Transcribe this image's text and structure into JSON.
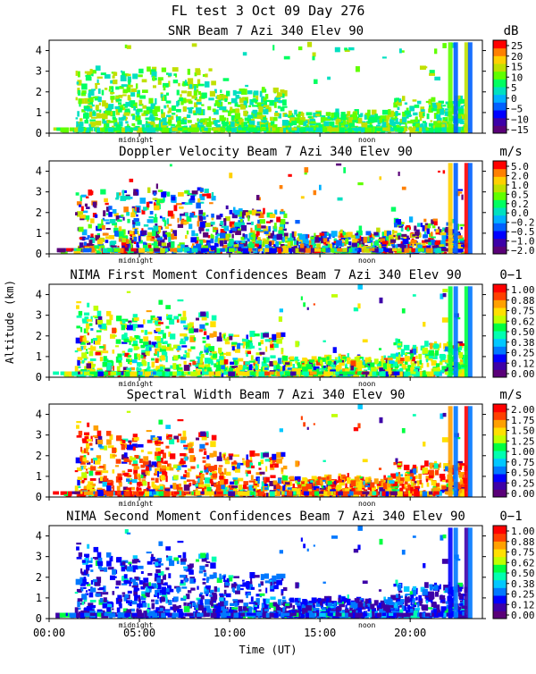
{
  "header": {
    "title_line": "FL test   3 Oct 09 Day 276"
  },
  "x_axis": {
    "label": "Time (UT)",
    "ticks": [
      {
        "value": 0,
        "label": "00:00"
      },
      {
        "value": 5,
        "label": "05:00"
      },
      {
        "value": 10,
        "label": "10:00"
      },
      {
        "value": 15,
        "label": "15:00"
      },
      {
        "value": 20,
        "label": "20:00"
      }
    ],
    "range": [
      0,
      24
    ],
    "markers": [
      {
        "value": 4.8,
        "label": "midnight"
      },
      {
        "value": 17.6,
        "label": "noon"
      }
    ]
  },
  "y_axis": {
    "label": "Altitude (km)",
    "range": [
      0,
      4.5
    ],
    "ticks": [
      0,
      1,
      2,
      3,
      4
    ]
  },
  "colors": {
    "ramp_signed": [
      "#5a0078",
      "#3d00a8",
      "#0000ff",
      "#0060ff",
      "#00b0ff",
      "#00e0c0",
      "#00ff60",
      "#60ff00",
      "#c0e000",
      "#ffd000",
      "#ff8000",
      "#ff0000"
    ],
    "ramp_positive": [
      "#5a0078",
      "#3d00a8",
      "#0000ff",
      "#0078ff",
      "#00c8ff",
      "#00ffb0",
      "#00ff40",
      "#c0ff00",
      "#ffe000",
      "#ffa000",
      "#ff4000",
      "#ff0000"
    ]
  },
  "chart_data": [
    {
      "type": "heatmap",
      "title": "SNR Beam 7 Azi 340 Elev 90",
      "unit": "dB",
      "colorbar_ticks": [
        "25",
        "20",
        "15",
        "10",
        "5",
        "0",
        "−5",
        "−10",
        "−15"
      ],
      "xlim": [
        0,
        24
      ],
      "ylim": [
        0,
        4.5
      ],
      "dominant": "low"
    },
    {
      "type": "heatmap",
      "title": "Doppler Velocity Beam 7 Azi 340 Elev 90",
      "unit": "m/s",
      "colorbar_ticks": [
        "5.0",
        "2.0",
        "1.0",
        "0.5",
        "0.2",
        "0.0",
        "−0.2",
        "−0.5",
        "−1.0",
        "−2.0"
      ],
      "xlim": [
        0,
        24
      ],
      "ylim": [
        0,
        4.5
      ],
      "dominant": "mixed"
    },
    {
      "type": "heatmap",
      "title": "NIMA First Moment Confidences Beam 7 Azi 340 Elev 90",
      "unit": "0−1",
      "colorbar_ticks": [
        "1.00",
        "0.88",
        "0.75",
        "0.62",
        "0.50",
        "0.38",
        "0.25",
        "0.12",
        "0.00"
      ],
      "xlim": [
        0,
        24
      ],
      "ylim": [
        0,
        4.5
      ],
      "dominant": "mid"
    },
    {
      "type": "heatmap",
      "title": "Spectral Width Beam 7 Azi 340 Elev 90",
      "unit": "m/s",
      "colorbar_ticks": [
        "2.00",
        "1.75",
        "1.50",
        "1.25",
        "1.00",
        "0.75",
        "0.50",
        "0.25",
        "0.00"
      ],
      "xlim": [
        0,
        24
      ],
      "ylim": [
        0,
        4.5
      ],
      "dominant": "high"
    },
    {
      "type": "heatmap",
      "title": "NIMA Second Moment Confidences Beam 7 Azi 340 Elev 90",
      "unit": "0−1",
      "colorbar_ticks": [
        "1.00",
        "0.88",
        "0.75",
        "0.62",
        "0.50",
        "0.38",
        "0.25",
        "0.12",
        "0.00"
      ],
      "xlim": [
        0,
        24
      ],
      "ylim": [
        0,
        4.5
      ],
      "dominant": "blue"
    }
  ]
}
